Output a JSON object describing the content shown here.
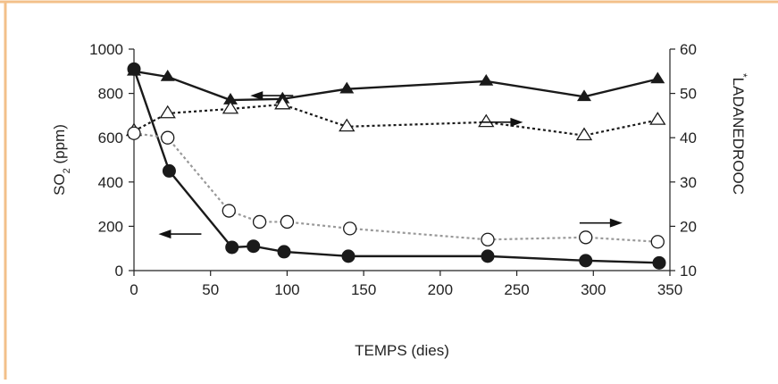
{
  "colors": {
    "border": "#f3c08a",
    "series_main": "#1a1a1a",
    "series_light": "#999999"
  },
  "chart_data": {
    "type": "line",
    "title": "",
    "xlabel": "TEMPS (dies)",
    "ylabel_left": "SO",
    "ylabel_left_sub": "2",
    "ylabel_left_unit": " (ppm)",
    "ylabel_right_star": "*",
    "ylabel_right": "LADANEDROOC",
    "xlim": [
      0,
      350
    ],
    "ylim_left": [
      0,
      1000
    ],
    "ylim_right": [
      10,
      60
    ],
    "x_ticks": [
      "0",
      "50",
      "100",
      "150",
      "200",
      "250",
      "300",
      "350"
    ],
    "y_left_ticks": [
      "0",
      "200",
      "400",
      "600",
      "800",
      "1000"
    ],
    "y_right_ticks": [
      "10",
      "20",
      "30",
      "40",
      "50",
      "60"
    ],
    "grid": false,
    "series": [
      {
        "axis": "left",
        "marker": "filled-triangle",
        "line": "solid",
        "x": [
          0,
          22,
          63,
          97,
          139,
          230,
          294,
          342
        ],
        "y": [
          900,
          875,
          770,
          775,
          820,
          855,
          785,
          865
        ]
      },
      {
        "axis": "right",
        "marker": "open-triangle",
        "line": "dotted-black",
        "x": [
          0,
          22,
          63,
          97,
          139,
          230,
          294,
          342
        ],
        "y": [
          41.5,
          45.5,
          46.5,
          47.5,
          42.5,
          43.5,
          40.5,
          44
        ]
      },
      {
        "axis": "left",
        "marker": "filled-circle",
        "line": "solid",
        "x": [
          0,
          23,
          64,
          78,
          98,
          140,
          231,
          295,
          343
        ],
        "y": [
          910,
          450,
          105,
          110,
          85,
          65,
          65,
          45,
          35
        ]
      },
      {
        "axis": "right",
        "marker": "open-circle",
        "line": "dotted-gray",
        "x": [
          0,
          22,
          62,
          82,
          100,
          141,
          231,
          295,
          342
        ],
        "y": [
          41,
          40,
          23.5,
          21,
          21,
          19.5,
          17,
          17.5,
          16.5
        ]
      }
    ],
    "annotations": [
      {
        "type": "arrow",
        "direction": "left",
        "x": 90,
        "y_left": 790
      },
      {
        "type": "arrow",
        "direction": "right",
        "x": 240,
        "y_left": 670
      },
      {
        "type": "arrow",
        "direction": "left",
        "x": 30,
        "y_left": 165
      },
      {
        "type": "arrow",
        "direction": "right",
        "x": 305,
        "y_left": 215
      }
    ]
  }
}
